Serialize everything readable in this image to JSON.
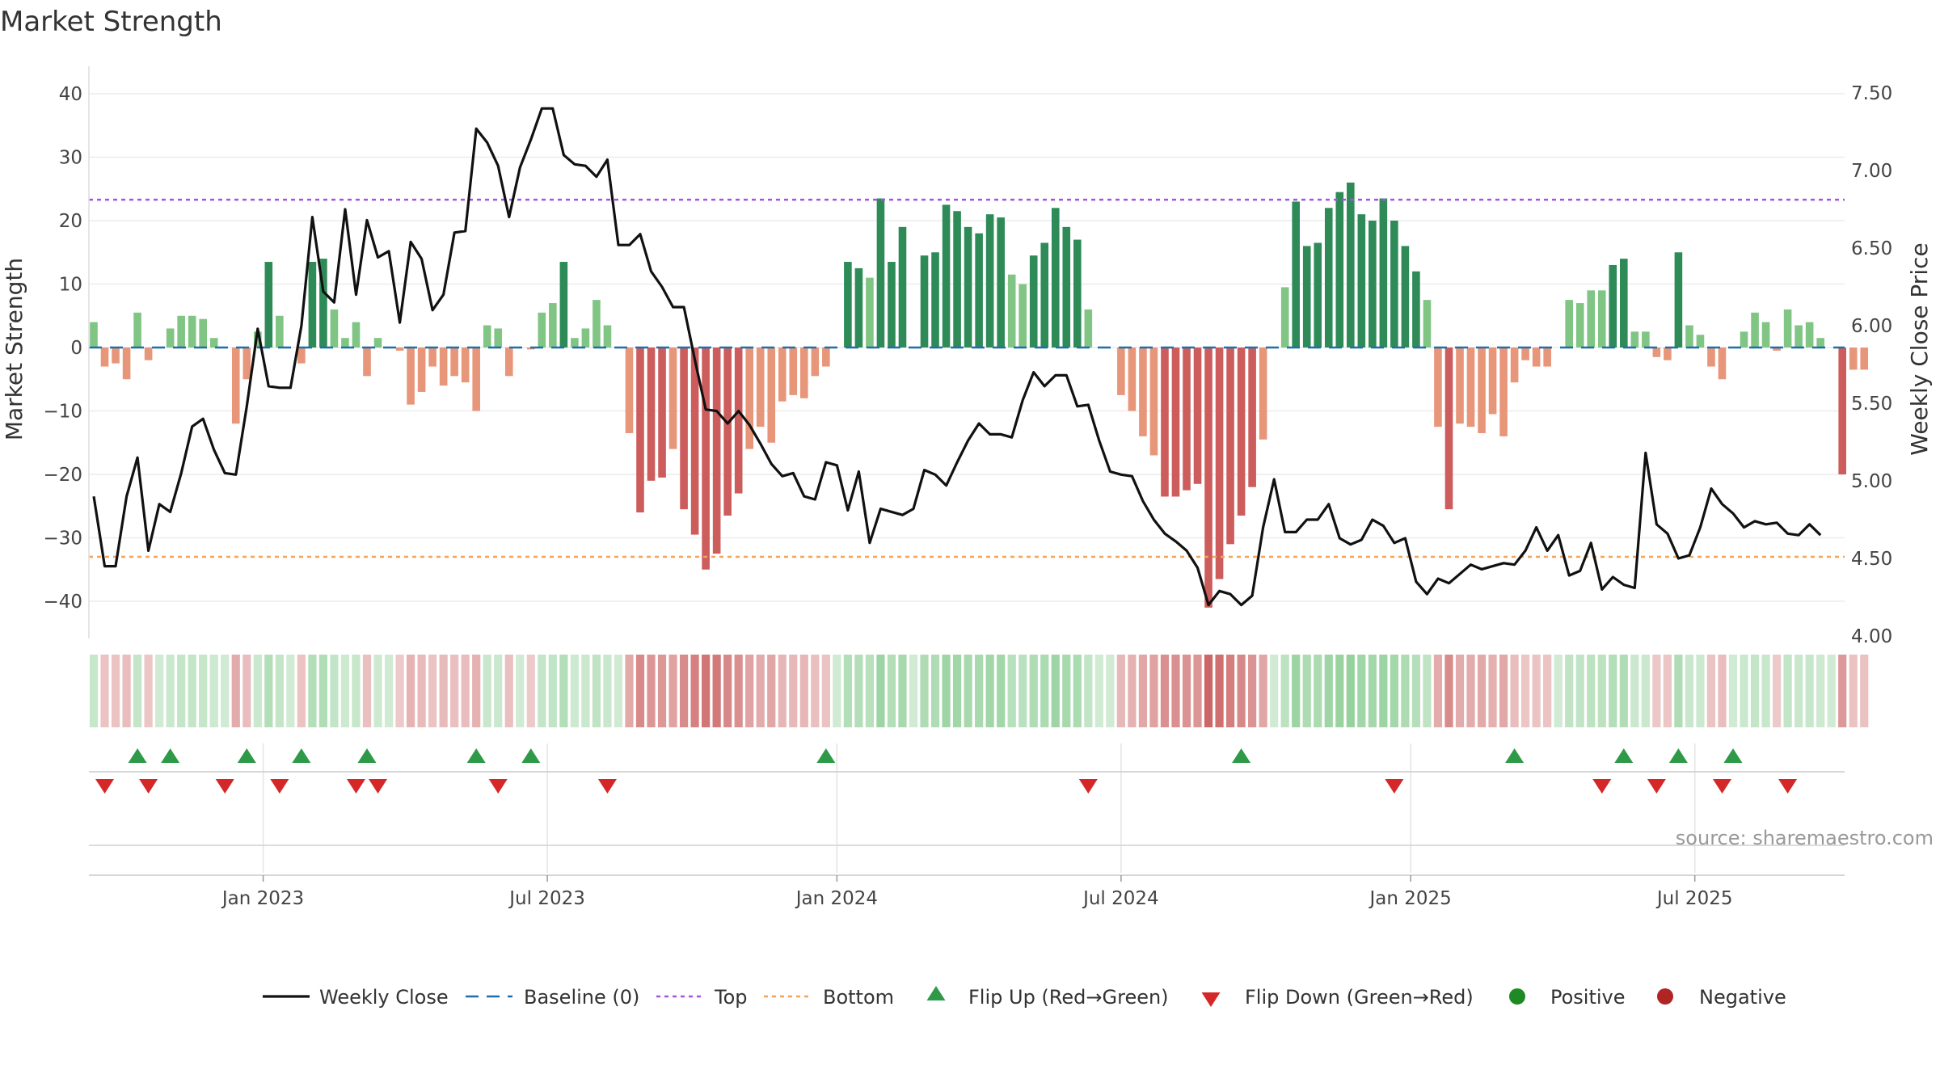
{
  "chart_data": {
    "type": "bar",
    "title": "Market Strength",
    "ylabel": "Market Strength",
    "y2label": "Weekly Close Price",
    "ylim": [
      -45,
      42
    ],
    "y2lim": [
      3.95,
      7.55
    ],
    "yticks": [
      40,
      30,
      20,
      10,
      0,
      -10,
      -20,
      -30,
      -40
    ],
    "yticklabels": [
      "40",
      "30",
      "20",
      "10",
      "0",
      "−10",
      "−20",
      "−30",
      "−40"
    ],
    "y2ticks": [
      7.5,
      7.0,
      6.5,
      6.0,
      5.5,
      5.0,
      4.5,
      4.0
    ],
    "y2ticklabels": [
      "7.50",
      "7.00",
      "6.50",
      "6.00",
      "5.50",
      "5.00",
      "4.50",
      "4.00"
    ],
    "top_level": 23.3,
    "bottom_level": -33.0,
    "baseline": 0,
    "xticklabels": [
      "Jan 2023",
      "Jul 2023",
      "Jan 2024",
      "Jul 2024",
      "Jan 2025",
      "Jul 2025"
    ],
    "xtick_weeks": [
      15.5,
      41.5,
      68,
      94,
      120.5,
      146.5
    ],
    "series": [
      {
        "name": "Market Strength",
        "values": [
          4,
          -3,
          -2.5,
          -5,
          5.5,
          -2,
          0,
          3,
          5,
          5,
          4.5,
          1.5,
          0,
          -12,
          -5,
          2.5,
          13.5,
          5,
          0,
          -2.5,
          13.5,
          14,
          6,
          1.5,
          4,
          -4.5,
          1.5,
          0,
          -0.5,
          -9,
          -7,
          -3,
          -6,
          -4.5,
          -5.5,
          -10,
          3.5,
          3,
          -4.5,
          0,
          -0.3,
          5.5,
          7,
          13.5,
          1.5,
          3,
          7.5,
          3.5,
          0,
          -13.5,
          -26,
          -21,
          -20.5,
          -16,
          -25.5,
          -29.5,
          -35,
          -32.5,
          -26.5,
          -23,
          -16,
          -12.5,
          -15,
          -8.5,
          -7.5,
          -8,
          -4.5,
          -3,
          0,
          13.5,
          12.5,
          11,
          23.5,
          13.5,
          19,
          0,
          14.5,
          15,
          22.5,
          21.5,
          19,
          18,
          21,
          20.5,
          11.5,
          10,
          14.5,
          16.5,
          22,
          19,
          17,
          6,
          0,
          0,
          -7.5,
          -10,
          -14,
          -17,
          -23.5,
          -23.5,
          -22.5,
          -21.5,
          -41,
          -36.5,
          -31,
          -26.5,
          -22,
          -14.5,
          0,
          9.5,
          23,
          16,
          16.5,
          22,
          24.5,
          26,
          21,
          20,
          23.5,
          20,
          16,
          12,
          7.5,
          -12.5,
          -25.5,
          -12,
          -12.5,
          -13.5,
          -10.5,
          -14,
          -5.5,
          -2,
          -3,
          -3,
          0,
          7.5,
          7,
          9,
          9,
          13,
          14,
          2.5,
          2.5,
          -1.5,
          -2,
          15,
          3.5,
          2,
          -3,
          -5,
          0,
          2.5,
          5.5,
          4,
          -0.5,
          6,
          3.5,
          4,
          1.5,
          0,
          -20,
          -3.5,
          -3.5
        ]
      },
      {
        "name": "Weekly Close",
        "values": [
          4.9,
          4.45,
          4.45,
          4.9,
          5.15,
          4.55,
          4.85,
          4.8,
          5.05,
          5.35,
          5.4,
          5.2,
          5.05,
          5.04,
          5.48,
          5.98,
          5.61,
          5.6,
          5.6,
          6.0,
          6.7,
          6.22,
          6.15,
          6.75,
          6.2,
          6.68,
          6.44,
          6.48,
          6.02,
          6.54,
          6.43,
          6.1,
          6.2,
          6.6,
          6.61,
          7.27,
          7.18,
          7.03,
          6.7,
          7.02,
          7.2,
          7.4,
          7.4,
          7.1,
          7.04,
          7.03,
          6.96,
          7.07,
          6.52,
          6.52,
          6.59,
          6.35,
          6.25,
          6.12,
          6.12,
          5.78,
          5.46,
          5.45,
          5.37,
          5.45,
          5.36,
          5.24,
          5.11,
          5.03,
          5.05,
          4.9,
          4.88,
          5.12,
          5.1,
          4.81,
          5.06,
          4.6,
          4.82,
          4.8,
          4.78,
          4.82,
          5.07,
          5.04,
          4.97,
          5.12,
          5.26,
          5.37,
          5.3,
          5.3,
          5.28,
          5.52,
          5.7,
          5.61,
          5.68,
          5.68,
          5.48,
          5.49,
          5.26,
          5.06,
          5.04,
          5.03,
          4.87,
          4.75,
          4.66,
          4.61,
          4.55,
          4.44,
          4.2,
          4.29,
          4.27,
          4.2,
          4.26,
          4.7,
          5.01,
          4.67,
          4.67,
          4.75,
          4.75,
          4.85,
          4.63,
          4.59,
          4.62,
          4.75,
          4.71,
          4.6,
          4.63,
          4.35,
          4.27,
          4.37,
          4.34,
          4.4,
          4.46,
          4.43,
          4.45,
          4.47,
          4.46,
          4.55,
          4.7,
          4.55,
          4.65,
          4.39,
          4.42,
          4.6,
          4.3,
          4.38,
          4.33,
          4.31,
          5.18,
          4.72,
          4.66,
          4.5,
          4.52,
          4.7,
          4.95,
          4.85,
          4.79,
          4.7,
          4.74,
          4.72,
          4.73,
          4.66,
          4.65,
          4.72,
          4.65
        ]
      }
    ],
    "flip_up_weeks": [
      4,
      7,
      14,
      19,
      25,
      35,
      40,
      67,
      105,
      130,
      140,
      145,
      150
    ],
    "flip_down_weeks": [
      1,
      5,
      12,
      17,
      24,
      26,
      37,
      47,
      91,
      119,
      138,
      143,
      149,
      155
    ],
    "legend": [
      "Weekly Close",
      "Baseline (0)",
      "Top",
      "Bottom",
      "Flip Up (Red→Green)",
      "Flip Down (Green→Red)",
      "Positive",
      "Negative"
    ],
    "source": "source: sharemaestro.com",
    "colors": {
      "green_dark": "#2e8b57",
      "green_light": "#80c584",
      "red_dark": "#cd5c5c",
      "red_light": "#e8967a",
      "close_line": "#111111",
      "baseline": "#1f6fa8",
      "top": "#a453e0",
      "bottom": "#f2a55a",
      "flip_up": "#2e9a48",
      "flip_down": "#d62728",
      "positive": "#1e8a24",
      "negative": "#b02424"
    }
  }
}
